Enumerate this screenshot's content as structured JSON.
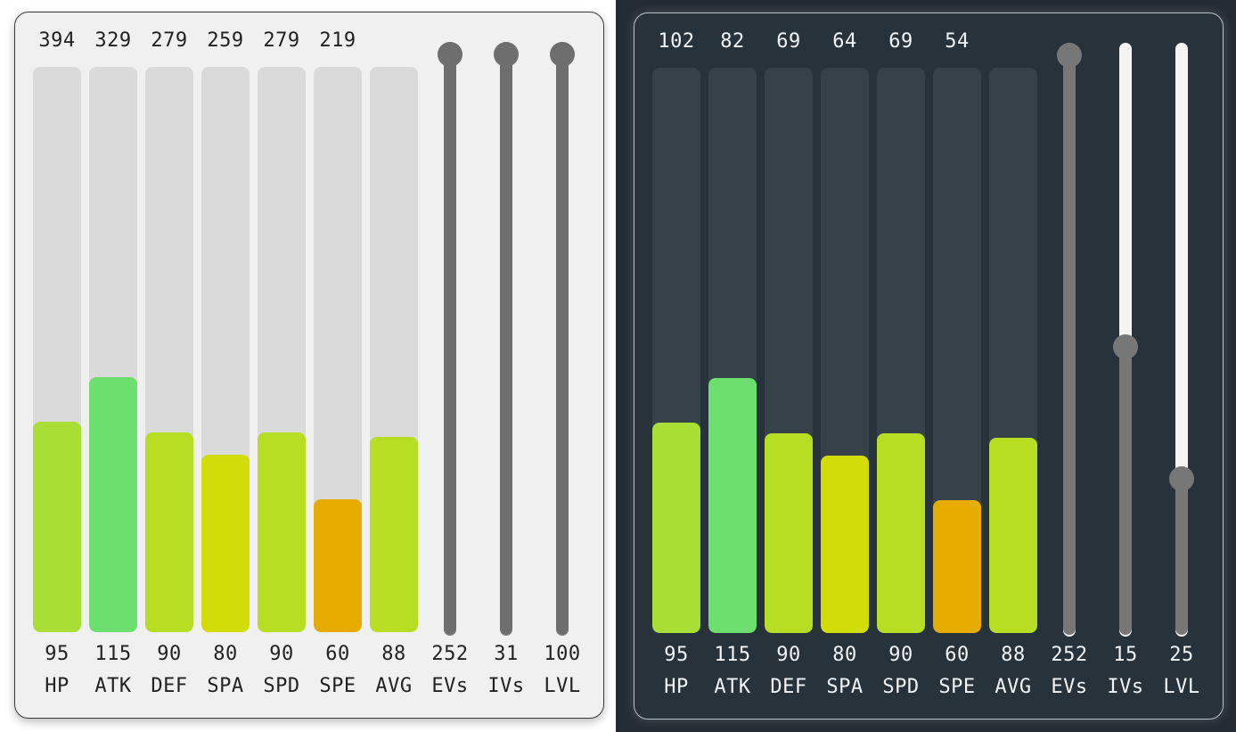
{
  "panels": [
    {
      "id": "light",
      "theme": "light",
      "stats": [
        {
          "label": "HP",
          "base": "95",
          "total": "394",
          "color": "#a9df34"
        },
        {
          "label": "ATK",
          "base": "115",
          "total": "329",
          "color": "#6cdf6f"
        },
        {
          "label": "DEF",
          "base": "90",
          "total": "279",
          "color": "#b8de23"
        },
        {
          "label": "SPA",
          "base": "80",
          "total": "259",
          "color": "#d2dc08"
        },
        {
          "label": "SPD",
          "base": "90",
          "total": "279",
          "color": "#b8de23"
        },
        {
          "label": "SPE",
          "base": "60",
          "total": "219",
          "color": "#e6ad00"
        },
        {
          "label": "AVG",
          "base": "88",
          "total": "",
          "color": "#b8de23"
        }
      ],
      "stat_max": 255,
      "sliders": [
        {
          "label": "EVs",
          "value": "252",
          "max": 252
        },
        {
          "label": "IVs",
          "value": "31",
          "max": 31
        },
        {
          "label": "LVL",
          "value": "100",
          "max": 100
        }
      ]
    },
    {
      "id": "dark",
      "theme": "dark",
      "stats": [
        {
          "label": "HP",
          "base": "95",
          "total": "102",
          "color": "#a9df34"
        },
        {
          "label": "ATK",
          "base": "115",
          "total": "82",
          "color": "#6cdf6f"
        },
        {
          "label": "DEF",
          "base": "90",
          "total": "69",
          "color": "#b8de23"
        },
        {
          "label": "SPA",
          "base": "80",
          "total": "64",
          "color": "#d2dc08"
        },
        {
          "label": "SPD",
          "base": "90",
          "total": "69",
          "color": "#b8de23"
        },
        {
          "label": "SPE",
          "base": "60",
          "total": "54",
          "color": "#e6ad00"
        },
        {
          "label": "AVG",
          "base": "88",
          "total": "",
          "color": "#b8de23"
        }
      ],
      "stat_max": 255,
      "sliders": [
        {
          "label": "EVs",
          "value": "252",
          "max": 252
        },
        {
          "label": "IVs",
          "value": "15",
          "max": 31
        },
        {
          "label": "LVL",
          "value": "25",
          "max": 100
        }
      ]
    }
  ]
}
